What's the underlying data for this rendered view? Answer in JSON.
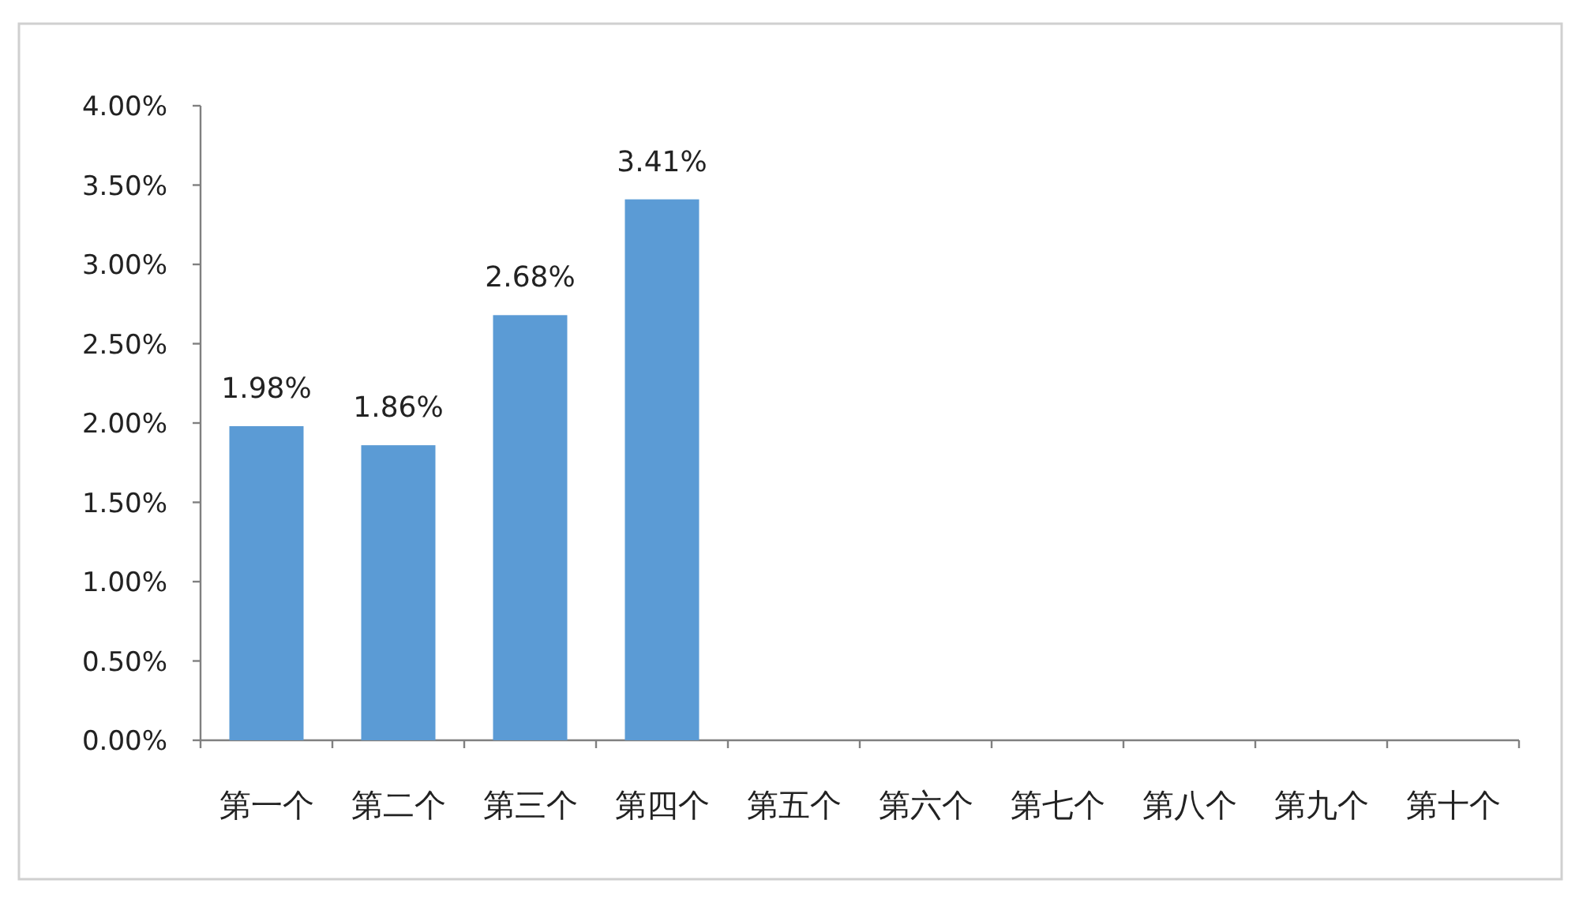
{
  "chart_data": {
    "type": "bar",
    "categories": [
      "第一个",
      "第二个",
      "第三个",
      "第四个",
      "第五个",
      "第六个",
      "第七个",
      "第八个",
      "第九个",
      "第十个"
    ],
    "values": [
      1.98,
      1.86,
      2.68,
      3.41,
      null,
      null,
      null,
      null,
      null,
      null
    ],
    "value_labels": [
      "1.98%",
      "1.86%",
      "2.68%",
      "3.41%",
      null,
      null,
      null,
      null,
      null,
      null
    ],
    "color": "#5b9bd5",
    "ylim": [
      0,
      4
    ],
    "yticks": [
      {
        "value": 0,
        "label": "0.00%"
      },
      {
        "value": 0.5,
        "label": "0.50%"
      },
      {
        "value": 1,
        "label": "1.00%"
      },
      {
        "value": 1.5,
        "label": "1.50%"
      },
      {
        "value": 2,
        "label": "2.00%"
      },
      {
        "value": 2.5,
        "label": "2.50%"
      },
      {
        "value": 3,
        "label": "3.00%"
      },
      {
        "value": 3.5,
        "label": "3.50%"
      },
      {
        "value": 4,
        "label": "4.00%"
      }
    ],
    "grid": false
  }
}
